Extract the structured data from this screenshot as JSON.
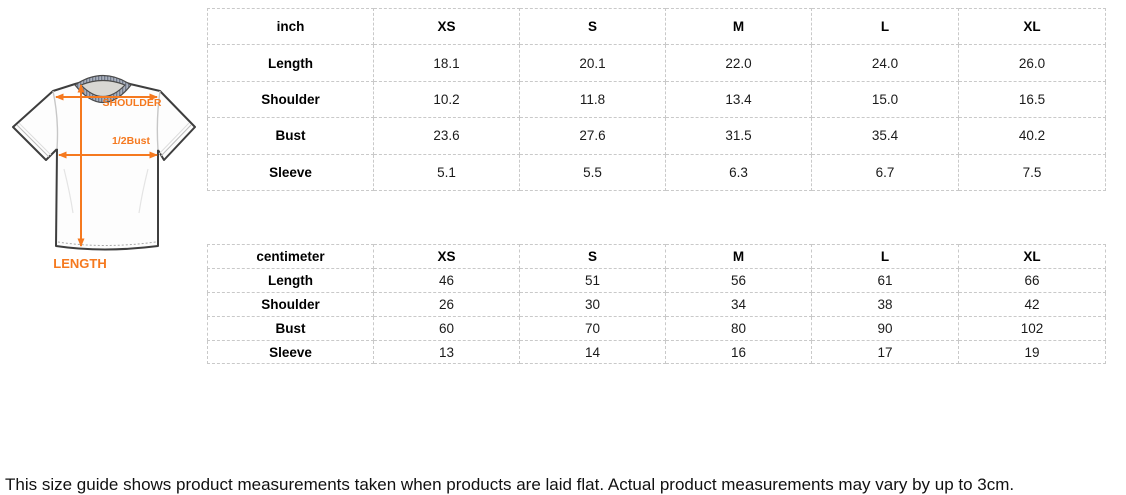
{
  "diagram": {
    "labels": {
      "shoulder": "SHOULDER",
      "bust": "1/2Bust",
      "length": "LENGTH"
    },
    "colors": {
      "arrow_orange": "#F5791F",
      "outline_gray": "#3e3e3e",
      "collar_stripe_dark": "#717a8c",
      "collar_stripe_light": "#aab1bd",
      "inside_back": "#d8d7d3"
    }
  },
  "size_tables": [
    {
      "unit_header": "inch",
      "columns": [
        "XS",
        "S",
        "M",
        "L",
        "XL"
      ],
      "rows": [
        {
          "label": "Length",
          "values": [
            "18.1",
            "20.1",
            "22.0",
            "24.0",
            "26.0"
          ]
        },
        {
          "label": "Shoulder",
          "values": [
            "10.2",
            "11.8",
            "13.4",
            "15.0",
            "16.5"
          ]
        },
        {
          "label": "Bust",
          "values": [
            "23.6",
            "27.6",
            "31.5",
            "35.4",
            "40.2"
          ]
        },
        {
          "label": "Sleeve",
          "values": [
            "5.1",
            "5.5",
            "6.3",
            "6.7",
            "7.5"
          ]
        }
      ]
    },
    {
      "unit_header": "centimeter",
      "columns": [
        "XS",
        "S",
        "M",
        "L",
        "XL"
      ],
      "rows": [
        {
          "label": "Length",
          "values": [
            "46",
            "51",
            "56",
            "61",
            "66"
          ]
        },
        {
          "label": "Shoulder",
          "values": [
            "26",
            "30",
            "34",
            "38",
            "42"
          ]
        },
        {
          "label": "Bust",
          "values": [
            "60",
            "70",
            "80",
            "90",
            "102"
          ]
        },
        {
          "label": "Sleeve",
          "values": [
            "13",
            "14",
            "16",
            "17",
            "19"
          ]
        }
      ]
    }
  ],
  "note": "This size guide shows product measurements taken when products are laid flat. Actual product measurements may vary by up to 3cm."
}
